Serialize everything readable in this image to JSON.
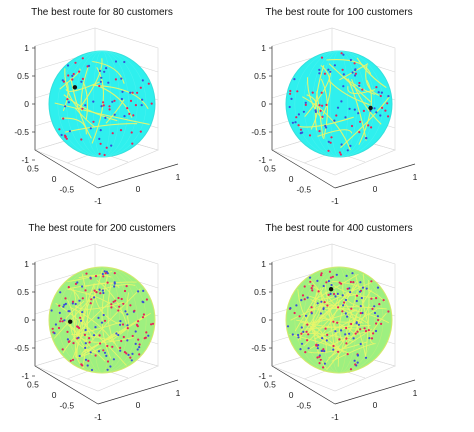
{
  "colors": {
    "sphere_fill": "#2ff0ee",
    "route_line": "#e9f56a",
    "customer_point_red": "#e8215a",
    "customer_point_blue": "#3a4fd8",
    "depot_marker": "#111111",
    "dense_sphere_fill": "#9ef080"
  },
  "chart_data": [
    {
      "type": "scatter",
      "title": "The best route for 80 customers",
      "customers": 80,
      "xlabel": "",
      "ylabel": "",
      "zlabel": "",
      "zticks": [
        "1",
        "0.5",
        "0",
        "-0.5",
        "-1"
      ],
      "yticks": [
        "0.5",
        "0",
        "-0.5"
      ],
      "xticks": [
        "-1",
        "0",
        "1"
      ],
      "xlim": [
        -1,
        1
      ],
      "ylim": [
        -1,
        1
      ],
      "zlim": [
        -1,
        1
      ],
      "grid": true,
      "surface": "unit sphere",
      "route_lines": 18,
      "style": "cyan"
    },
    {
      "type": "scatter",
      "title": "The best route for 100 customers",
      "customers": 100,
      "xlabel": "",
      "ylabel": "",
      "zlabel": "",
      "zticks": [
        "1",
        "0.5",
        "0",
        "-0.5",
        "-1"
      ],
      "yticks": [
        "0.5",
        "0",
        "-0.5"
      ],
      "xticks": [
        "-1",
        "0",
        "1"
      ],
      "xlim": [
        -1,
        1
      ],
      "ylim": [
        -1,
        1
      ],
      "zlim": [
        -1,
        1
      ],
      "grid": true,
      "surface": "unit sphere",
      "route_lines": 22,
      "style": "cyan"
    },
    {
      "type": "scatter",
      "title": "The best route for 200 customers",
      "customers": 200,
      "xlabel": "",
      "ylabel": "",
      "zlabel": "",
      "zticks": [
        "1",
        "0.5",
        "0",
        "-0.5",
        "-1"
      ],
      "yticks": [
        "0.5",
        "0",
        "-0.5"
      ],
      "xticks": [
        "-1",
        "0",
        "1"
      ],
      "xlim": [
        -1,
        1
      ],
      "ylim": [
        -1,
        1
      ],
      "zlim": [
        -1,
        1
      ],
      "grid": true,
      "surface": "unit sphere",
      "route_lines": 40,
      "style": "dense"
    },
    {
      "type": "scatter",
      "title": "The best route for 400 customers",
      "customers": 400,
      "xlabel": "",
      "ylabel": "",
      "zlabel": "",
      "zticks": [
        "1",
        "0.5",
        "0",
        "-0.5",
        "-1"
      ],
      "yticks": [
        "0.5",
        "0",
        "-0.5"
      ],
      "xticks": [
        "-1",
        "0",
        "1"
      ],
      "xlim": [
        -1,
        1
      ],
      "ylim": [
        -1,
        1
      ],
      "zlim": [
        -1,
        1
      ],
      "grid": true,
      "surface": "unit sphere",
      "route_lines": 55,
      "style": "dense"
    }
  ]
}
